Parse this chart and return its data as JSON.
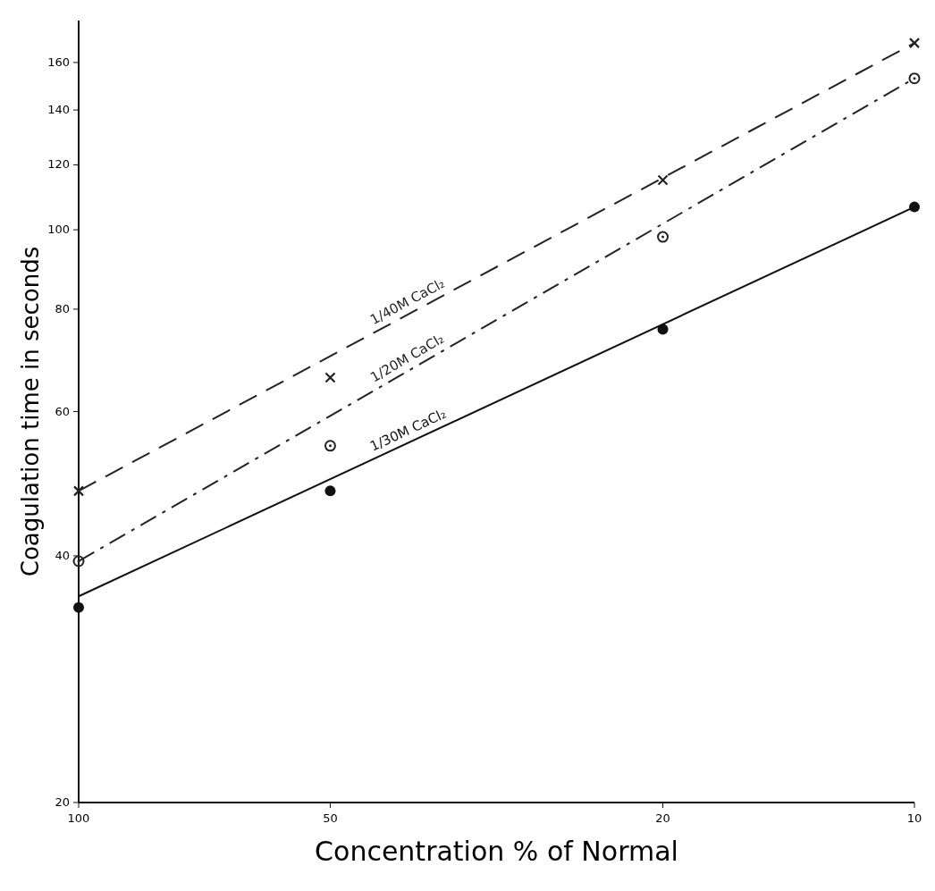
{
  "chart_data": {
    "type": "scatter",
    "xlabel": "Concentration % of Normal",
    "ylabel": "Coagulation time in seconds",
    "log": "xy",
    "xlim": [
      100,
      10
    ],
    "xticks": [
      100,
      50,
      20,
      10
    ],
    "ylim": [
      20,
      180
    ],
    "yticks": [
      20,
      40,
      60,
      80,
      100,
      120,
      140,
      160
    ],
    "grid": false,
    "series": [
      {
        "color": "#222222",
        "marker": "cross",
        "x": [
          100,
          50,
          20,
          10
        ],
        "values": [
          48,
          66,
          115,
          169
        ]
      },
      {
        "type": "line",
        "name": "1/40M CaCl₂",
        "color": "#222222",
        "line_style": "dashed",
        "marker": "none",
        "x": [
          100,
          10
        ],
        "values": [
          48,
          169
        ]
      },
      {
        "color": "#222222",
        "marker": "circle",
        "x": [
          100,
          50,
          20,
          10
        ],
        "values": [
          39.4,
          54.5,
          98,
          153
        ]
      },
      {
        "type": "line",
        "name": "1/20M CaCl₂",
        "color": "#222222",
        "line_style": "dashdot",
        "marker": "none",
        "x": [
          100,
          10
        ],
        "values": [
          39.4,
          153
        ]
      },
      {
        "color": "#111111",
        "marker": "circle_filled",
        "x": [
          100,
          50,
          20,
          10
        ],
        "values": [
          34.6,
          48,
          75.6,
          106.6
        ]
      },
      {
        "type": "line",
        "name": "1/30M CaCl₂",
        "color": "#111111",
        "line_style": "solid",
        "marker": "none",
        "x": [
          100,
          10
        ],
        "values": [
          35.7,
          106.6
        ]
      }
    ]
  }
}
